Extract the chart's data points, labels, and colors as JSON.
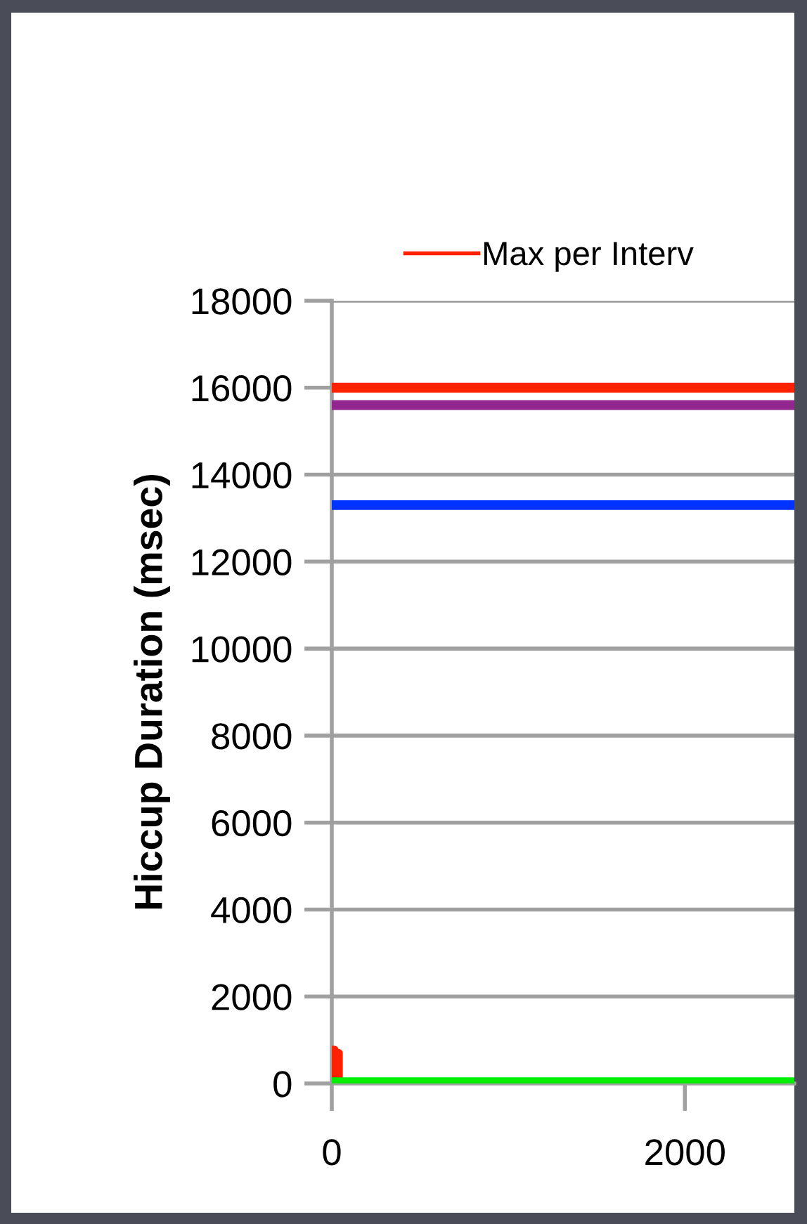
{
  "chart_data": {
    "type": "line",
    "ylabel": "Hiccup Duration (msec)",
    "series": [
      {
        "name": "Max per Interv",
        "color": "#ff2200",
        "x": [
          0,
          0,
          15,
          15,
          40,
          40
        ],
        "values": [
          0,
          780,
          780,
          700,
          700,
          0
        ]
      },
      {
        "color": "#00ee00",
        "x": [
          0,
          2620
        ],
        "values": [
          50,
          50
        ]
      }
    ],
    "ref_lines": [
      {
        "axis": "y",
        "value": 16000,
        "color": "#ff2200"
      },
      {
        "axis": "y",
        "value": 15600,
        "color": "#92278f"
      },
      {
        "axis": "y",
        "value": 13300,
        "color": "#0033ff"
      }
    ],
    "xlim": [
      0,
      2620
    ],
    "xticks": [
      0,
      2000
    ],
    "ylim": [
      0,
      18000
    ],
    "yticks": [
      0,
      2000,
      4000,
      6000,
      8000,
      10000,
      12000,
      14000,
      16000,
      18000
    ],
    "grid": "y",
    "legend": "top",
    "marker": "none",
    "line_style": "solid"
  }
}
